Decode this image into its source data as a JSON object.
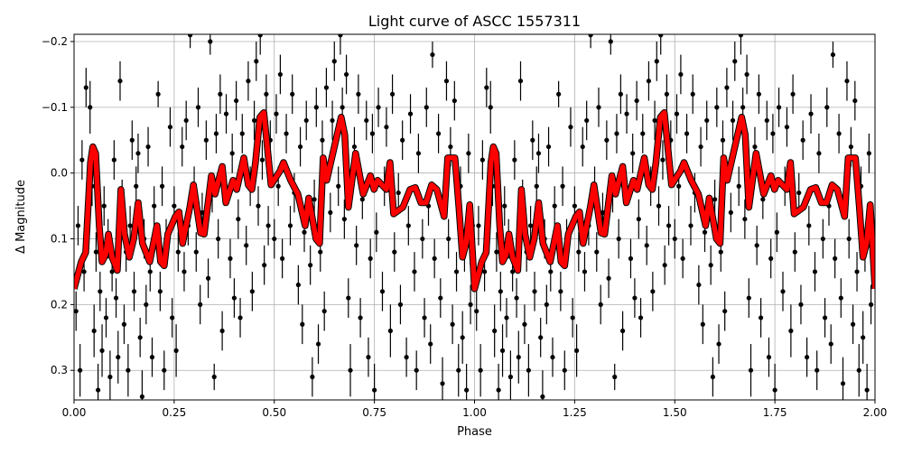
{
  "chart_data": {
    "type": "scatter",
    "title": "Light curve of ASCC 1557311",
    "xlabel": "Phase",
    "ylabel": "Δ Magnitude",
    "xlim": [
      0,
      2
    ],
    "ylim": [
      0.345,
      -0.211
    ],
    "y_inverted": true,
    "grid": true,
    "x_ticks": [
      {
        "v": 0,
        "label": "0.00"
      },
      {
        "v": 0.25,
        "label": "0.25"
      },
      {
        "v": 0.5,
        "label": "0.50"
      },
      {
        "v": 0.75,
        "label": "0.75"
      },
      {
        "v": 1.0,
        "label": "1.00"
      },
      {
        "v": 1.25,
        "label": "1.25"
      },
      {
        "v": 1.5,
        "label": "1.50"
      },
      {
        "v": 1.75,
        "label": "1.75"
      },
      {
        "v": 2.0,
        "label": "2.00"
      }
    ],
    "y_ticks": [
      {
        "v": -0.2,
        "label": "−0.2"
      },
      {
        "v": -0.1,
        "label": "−0.1"
      },
      {
        "v": 0.0,
        "label": "0.0"
      },
      {
        "v": 0.1,
        "label": "0.1"
      },
      {
        "v": 0.2,
        "label": "0.2"
      },
      {
        "v": 0.3,
        "label": "0.3"
      }
    ],
    "period_repeat": 1,
    "colors": {
      "points": "#000000",
      "model": "#ff0000",
      "grid": "#b0b0b0"
    },
    "observations_phase_mag_err": [
      [
        0.005,
        0.21,
        0.03
      ],
      [
        0.01,
        0.08,
        0.03
      ],
      [
        0.015,
        0.3,
        0.04
      ],
      [
        0.02,
        -0.02,
        0.03
      ],
      [
        0.025,
        0.15,
        0.03
      ],
      [
        0.03,
        -0.13,
        0.03
      ],
      [
        0.035,
        0.05,
        0.03
      ],
      [
        0.04,
        -0.1,
        0.04
      ],
      [
        0.045,
        0.02,
        0.03
      ],
      [
        0.05,
        0.24,
        0.04
      ],
      [
        0.055,
        0.12,
        0.03
      ],
      [
        0.06,
        0.33,
        0.04
      ],
      [
        0.065,
        0.18,
        0.03
      ],
      [
        0.07,
        0.27,
        0.04
      ],
      [
        0.075,
        0.05,
        0.03
      ],
      [
        0.08,
        0.22,
        0.03
      ],
      [
        0.085,
        0.1,
        0.03
      ],
      [
        0.09,
        0.31,
        0.04
      ],
      [
        0.095,
        0.15,
        0.03
      ],
      [
        0.1,
        -0.02,
        0.03
      ],
      [
        0.105,
        0.19,
        0.03
      ],
      [
        0.11,
        0.28,
        0.04
      ],
      [
        0.115,
        -0.14,
        0.03
      ],
      [
        0.12,
        0.04,
        0.03
      ],
      [
        0.125,
        0.23,
        0.03
      ],
      [
        0.13,
        0.12,
        0.03
      ],
      [
        0.135,
        0.3,
        0.04
      ],
      [
        0.14,
        0.08,
        0.03
      ],
      [
        0.145,
        -0.05,
        0.03
      ],
      [
        0.15,
        0.18,
        0.03
      ],
      [
        0.155,
        0.02,
        0.03
      ],
      [
        0.16,
        -0.03,
        0.03
      ],
      [
        0.165,
        0.25,
        0.03
      ],
      [
        0.17,
        0.34,
        0.04
      ],
      [
        0.175,
        0.1,
        0.03
      ],
      [
        0.18,
        0.2,
        0.03
      ],
      [
        0.185,
        -0.04,
        0.03
      ],
      [
        0.19,
        0.15,
        0.03
      ],
      [
        0.195,
        0.28,
        0.03
      ],
      [
        0.2,
        0.05,
        0.03
      ],
      [
        0.21,
        -0.12,
        0.02
      ],
      [
        0.215,
        0.18,
        0.03
      ],
      [
        0.22,
        0.02,
        0.03
      ],
      [
        0.225,
        0.3,
        0.03
      ],
      [
        0.23,
        0.1,
        0.03
      ],
      [
        0.24,
        -0.07,
        0.03
      ],
      [
        0.245,
        0.22,
        0.03
      ],
      [
        0.25,
        0.05,
        0.03
      ],
      [
        0.255,
        0.27,
        0.04
      ],
      [
        0.26,
        0.12,
        0.03
      ],
      [
        0.27,
        -0.04,
        0.03
      ],
      [
        0.275,
        0.15,
        0.03
      ],
      [
        0.28,
        -0.08,
        0.03
      ],
      [
        0.285,
        0.08,
        0.03
      ],
      [
        0.29,
        -0.21,
        0.02
      ],
      [
        0.3,
        0.02,
        0.03
      ],
      [
        0.305,
        0.12,
        0.03
      ],
      [
        0.31,
        -0.1,
        0.03
      ],
      [
        0.315,
        0.2,
        0.03
      ],
      [
        0.32,
        0.06,
        0.03
      ],
      [
        0.33,
        -0.05,
        0.03
      ],
      [
        0.335,
        0.16,
        0.03
      ],
      [
        0.34,
        -0.2,
        0.02
      ],
      [
        0.345,
        0.03,
        0.03
      ],
      [
        0.35,
        0.31,
        0.02
      ],
      [
        0.355,
        -0.06,
        0.03
      ],
      [
        0.36,
        0.1,
        0.03
      ],
      [
        0.365,
        -0.12,
        0.03
      ],
      [
        0.37,
        0.24,
        0.03
      ],
      [
        0.375,
        0.02,
        0.03
      ],
      [
        0.38,
        -0.09,
        0.03
      ],
      [
        0.39,
        0.13,
        0.03
      ],
      [
        0.395,
        -0.03,
        0.03
      ],
      [
        0.4,
        0.19,
        0.03
      ],
      [
        0.405,
        -0.11,
        0.03
      ],
      [
        0.41,
        0.07,
        0.03
      ],
      [
        0.415,
        0.22,
        0.03
      ],
      [
        0.42,
        -0.06,
        0.03
      ],
      [
        0.43,
        0.11,
        0.03
      ],
      [
        0.435,
        -0.14,
        0.03
      ],
      [
        0.44,
        0.02,
        0.03
      ],
      [
        0.445,
        0.18,
        0.03
      ],
      [
        0.45,
        -0.08,
        0.03
      ],
      [
        0.455,
        -0.17,
        0.03
      ],
      [
        0.46,
        0.05,
        0.03
      ],
      [
        0.465,
        -0.21,
        0.03
      ],
      [
        0.47,
        -0.02,
        0.03
      ],
      [
        0.475,
        0.14,
        0.03
      ],
      [
        0.48,
        -0.12,
        0.03
      ],
      [
        0.485,
        0.08,
        0.03
      ],
      [
        0.49,
        -0.05,
        0.03
      ],
      [
        0.5,
        0.1,
        0.03
      ],
      [
        0.505,
        -0.09,
        0.03
      ],
      [
        0.51,
        0.02,
        0.03
      ],
      [
        0.515,
        -0.15,
        0.03
      ],
      [
        0.52,
        0.13,
        0.03
      ],
      [
        0.53,
        -0.06,
        0.03
      ],
      [
        0.54,
        0.08,
        0.03
      ],
      [
        0.545,
        -0.12,
        0.03
      ],
      [
        0.55,
        0.03,
        0.03
      ],
      [
        0.56,
        0.17,
        0.03
      ],
      [
        0.565,
        -0.04,
        0.03
      ],
      [
        0.57,
        0.23,
        0.03
      ],
      [
        0.575,
        0.09,
        0.03
      ],
      [
        0.58,
        -0.08,
        0.03
      ],
      [
        0.59,
        0.14,
        0.03
      ],
      [
        0.595,
        0.31,
        0.03
      ],
      [
        0.6,
        0.04,
        0.03
      ],
      [
        0.605,
        -0.1,
        0.03
      ],
      [
        0.61,
        0.26,
        0.03
      ],
      [
        0.615,
        0.12,
        0.03
      ],
      [
        0.62,
        -0.05,
        0.03
      ],
      [
        0.625,
        0.21,
        0.03
      ],
      [
        0.63,
        -0.13,
        0.03
      ],
      [
        0.64,
        0.06,
        0.03
      ],
      [
        0.645,
        -0.08,
        0.03
      ],
      [
        0.65,
        -0.17,
        0.03
      ],
      [
        0.66,
        0.02,
        0.03
      ],
      [
        0.665,
        -0.21,
        0.03
      ],
      [
        0.67,
        -0.1,
        0.03
      ],
      [
        0.675,
        0.07,
        0.03
      ],
      [
        0.68,
        -0.15,
        0.03
      ],
      [
        0.685,
        0.19,
        0.03
      ],
      [
        0.69,
        0.3,
        0.04
      ],
      [
        0.7,
        -0.04,
        0.03
      ],
      [
        0.705,
        0.11,
        0.03
      ],
      [
        0.71,
        -0.12,
        0.03
      ],
      [
        0.715,
        0.22,
        0.03
      ],
      [
        0.72,
        0.04,
        0.03
      ],
      [
        0.73,
        -0.08,
        0.03
      ],
      [
        0.735,
        0.28,
        0.03
      ],
      [
        0.74,
        0.13,
        0.03
      ],
      [
        0.745,
        -0.06,
        0.03
      ],
      [
        0.75,
        0.33,
        0.04
      ],
      [
        0.755,
        0.09,
        0.03
      ],
      [
        0.76,
        -0.1,
        0.03
      ],
      [
        0.77,
        0.18,
        0.03
      ],
      [
        0.775,
        0.02,
        0.03
      ],
      [
        0.78,
        -0.07,
        0.03
      ],
      [
        0.79,
        0.24,
        0.04
      ],
      [
        0.795,
        -0.12,
        0.03
      ],
      [
        0.8,
        0.12,
        0.03
      ],
      [
        0.81,
        0.03,
        0.03
      ],
      [
        0.815,
        0.2,
        0.03
      ],
      [
        0.82,
        -0.05,
        0.03
      ],
      [
        0.83,
        0.28,
        0.03
      ],
      [
        0.835,
        0.08,
        0.03
      ],
      [
        0.84,
        -0.09,
        0.03
      ],
      [
        0.85,
        0.15,
        0.03
      ],
      [
        0.855,
        0.3,
        0.03
      ],
      [
        0.86,
        -0.03,
        0.03
      ],
      [
        0.87,
        0.1,
        0.03
      ],
      [
        0.875,
        0.22,
        0.03
      ],
      [
        0.88,
        -0.1,
        0.03
      ],
      [
        0.885,
        0.05,
        0.03
      ],
      [
        0.89,
        0.26,
        0.03
      ],
      [
        0.895,
        -0.18,
        0.02
      ],
      [
        0.9,
        0.13,
        0.03
      ],
      [
        0.91,
        -0.06,
        0.03
      ],
      [
        0.915,
        0.19,
        0.03
      ],
      [
        0.92,
        0.32,
        0.04
      ],
      [
        0.925,
        0.04,
        0.03
      ],
      [
        0.93,
        -0.14,
        0.03
      ],
      [
        0.935,
        0.1,
        0.03
      ],
      [
        0.94,
        -0.04,
        0.03
      ],
      [
        0.945,
        0.23,
        0.03
      ],
      [
        0.95,
        -0.11,
        0.03
      ],
      [
        0.955,
        0.15,
        0.03
      ],
      [
        0.96,
        0.3,
        0.04
      ],
      [
        0.965,
        0.02,
        0.03
      ],
      [
        0.97,
        0.25,
        0.04
      ],
      [
        0.975,
        0.12,
        0.03
      ],
      [
        0.98,
        0.33,
        0.04
      ],
      [
        0.985,
        -0.03,
        0.03
      ],
      [
        0.99,
        0.2,
        0.03
      ],
      [
        0.995,
        0.08,
        0.03
      ]
    ],
    "model_phase_mag": [
      [
        0.0,
        0.176
      ],
      [
        0.018,
        0.135
      ],
      [
        0.029,
        0.121
      ],
      [
        0.041,
        -0.016
      ],
      [
        0.047,
        -0.04
      ],
      [
        0.054,
        -0.03
      ],
      [
        0.063,
        0.08
      ],
      [
        0.07,
        0.135
      ],
      [
        0.079,
        0.124
      ],
      [
        0.086,
        0.093
      ],
      [
        0.095,
        0.128
      ],
      [
        0.108,
        0.148
      ],
      [
        0.117,
        0.025
      ],
      [
        0.126,
        0.093
      ],
      [
        0.138,
        0.128
      ],
      [
        0.149,
        0.1
      ],
      [
        0.16,
        0.045
      ],
      [
        0.171,
        0.107
      ],
      [
        0.189,
        0.135
      ],
      [
        0.207,
        0.08
      ],
      [
        0.216,
        0.135
      ],
      [
        0.225,
        0.141
      ],
      [
        0.234,
        0.093
      ],
      [
        0.253,
        0.066
      ],
      [
        0.262,
        0.059
      ],
      [
        0.271,
        0.107
      ],
      [
        0.289,
        0.052
      ],
      [
        0.298,
        0.018
      ],
      [
        0.316,
        0.091
      ],
      [
        0.325,
        0.093
      ],
      [
        0.343,
        0.004
      ],
      [
        0.352,
        0.032
      ],
      [
        0.37,
        -0.01
      ],
      [
        0.379,
        0.045
      ],
      [
        0.397,
        0.011
      ],
      [
        0.406,
        0.025
      ],
      [
        0.424,
        -0.023
      ],
      [
        0.435,
        0.018
      ],
      [
        0.444,
        0.025
      ],
      [
        0.453,
        -0.016
      ],
      [
        0.464,
        -0.085
      ],
      [
        0.474,
        -0.092
      ],
      [
        0.483,
        -0.037
      ],
      [
        0.492,
        0.018
      ],
      [
        0.514,
        -0.003
      ],
      [
        0.523,
        -0.016
      ],
      [
        0.541,
        0.011
      ],
      [
        0.559,
        0.032
      ],
      [
        0.577,
        0.08
      ],
      [
        0.586,
        0.038
      ],
      [
        0.604,
        0.1
      ],
      [
        0.613,
        0.107
      ],
      [
        0.622,
        -0.023
      ],
      [
        0.631,
        0.011
      ],
      [
        0.649,
        -0.037
      ],
      [
        0.667,
        -0.085
      ],
      [
        0.676,
        -0.058
      ],
      [
        0.685,
        0.052
      ],
      [
        0.703,
        -0.03
      ],
      [
        0.722,
        0.032
      ],
      [
        0.74,
        0.004
      ],
      [
        0.749,
        0.025
      ],
      [
        0.758,
        0.011
      ],
      [
        0.78,
        0.025
      ],
      [
        0.789,
        -0.016
      ],
      [
        0.798,
        0.062
      ],
      [
        0.821,
        0.052
      ],
      [
        0.839,
        0.025
      ],
      [
        0.852,
        0.022
      ],
      [
        0.866,
        0.045
      ],
      [
        0.879,
        0.045
      ],
      [
        0.893,
        0.018
      ],
      [
        0.906,
        0.025
      ],
      [
        0.924,
        0.066
      ],
      [
        0.933,
        -0.023
      ],
      [
        0.951,
        -0.023
      ],
      [
        0.961,
        0.052
      ],
      [
        0.97,
        0.128
      ],
      [
        0.979,
        0.107
      ],
      [
        0.988,
        0.048
      ],
      [
        1.0,
        0.176
      ]
    ]
  }
}
